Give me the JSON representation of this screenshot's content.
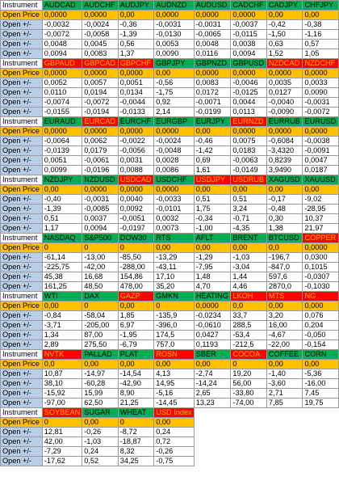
{
  "sheet": {
    "blocks": [
      {
        "header_label": "Instrument",
        "headers": [
          {
            "name": "AUDCAD",
            "color": "green"
          },
          {
            "name": "AUDCHF",
            "color": "green"
          },
          {
            "name": "AUDJPY",
            "color": "green"
          },
          {
            "name": "AUDNZD",
            "color": "green"
          },
          {
            "name": "AUDUSD",
            "color": "green"
          },
          {
            "name": "CADCHF",
            "color": "green"
          },
          {
            "name": "CADJPY",
            "color": "green"
          },
          {
            "name": "CHFJPY",
            "color": "green"
          }
        ],
        "open_price_label": "Open Price",
        "open_prices": [
          "0,0000",
          "0,0000",
          "0,00",
          "0,0000",
          "0,0000",
          "0,0000",
          "0,00",
          "0,00"
        ],
        "rows_label": "Open +/-",
        "rows": [
          [
            "-0,0032",
            "-0,0024",
            "-0,36",
            "-0,0031",
            "-0,0031",
            "-0,0037",
            "-0,42",
            "-0,38"
          ],
          [
            "-0,0072",
            "-0,0058",
            "-1,39",
            "-0,0130",
            "-0,0065",
            "-0,0115",
            "-1,50",
            "-1,16"
          ],
          [
            "0,0048",
            "0,0045",
            "0,56",
            "0,0053",
            "0,0048",
            "0,0038",
            "0,63",
            "0,57"
          ],
          [
            "0,0094",
            "0,0083",
            "1,37",
            "0,0090",
            "0,0116",
            "0,0094",
            "1,52",
            "1,05"
          ]
        ]
      },
      {
        "header_label": "Instrument",
        "headers": [
          {
            "name": "GBPAUD",
            "color": "red"
          },
          {
            "name": "GBPCAD",
            "color": "red"
          },
          {
            "name": "GBPCHF",
            "color": "red"
          },
          {
            "name": "GBPJPY",
            "color": "green"
          },
          {
            "name": "GBPNZD",
            "color": "green"
          },
          {
            "name": "GBPUSD",
            "color": "green"
          },
          {
            "name": "NZDCAD",
            "color": "red"
          },
          {
            "name": "NZDCHF",
            "color": "red"
          }
        ],
        "open_price_label": "Open Price",
        "open_prices": [
          "0,0000",
          "0,0000",
          "0,0000",
          "0,00",
          "0,0000",
          "0,0000",
          "0,0000",
          "0,0000"
        ],
        "rows_label": "Open +/-",
        "rows": [
          [
            "0,0052",
            "0,0057",
            "0,0051",
            "-0,56",
            "0,0083",
            "-0,0046",
            "0,0035",
            "0,0033"
          ],
          [
            "0,0110",
            "0,0194",
            "0,0134",
            "-1,75",
            "0,0172",
            "-0,0125",
            "0,0127",
            "0,0090"
          ],
          [
            "-0,0074",
            "-0,0072",
            "-0,0044",
            "0,92",
            "-0,0071",
            "0,0044",
            "-0,0040",
            "-0,0031"
          ],
          [
            "-0,0155",
            "-0,0194",
            "-0,0133",
            "2,14",
            "-0,0199",
            "0,0113",
            "-0,0090",
            "-0,0072"
          ]
        ]
      },
      {
        "header_label": "Instrument",
        "headers": [
          {
            "name": "EURAUD",
            "color": "green"
          },
          {
            "name": "EURCAD",
            "color": "red"
          },
          {
            "name": "EURCHF",
            "color": "green"
          },
          {
            "name": "EURGBP",
            "color": "green"
          },
          {
            "name": "EURJPY",
            "color": "green"
          },
          {
            "name": "EURNZD",
            "color": "red"
          },
          {
            "name": "EURRUB",
            "color": "green"
          },
          {
            "name": "EURUSD",
            "color": "green"
          }
        ],
        "open_price_label": "Open Price",
        "open_prices": [
          "0,0000",
          "0,0000",
          "0,0000",
          "0,0000",
          "0,00",
          "0,0000",
          "0,0000",
          "0,0000"
        ],
        "rows_label": "Open +/-",
        "rows": [
          [
            "-0,0064",
            "0,0062",
            "-0,0022",
            "-0,0024",
            "-0,46",
            "0,0075",
            "-0,6084",
            "-0,0038"
          ],
          [
            "-0,0139",
            "0,0179",
            "-0,0056",
            "-0,0048",
            "-1,42",
            "0,0183",
            "-3,4320",
            "-0,0091"
          ],
          [
            "0,0051",
            "-0,0061",
            "0,0031",
            "0,0028",
            "0,69",
            "-0,0063",
            "0,8239",
            "0,0047"
          ],
          [
            "0,0099",
            "-0,0196",
            "0,0088",
            "0,0086",
            "1,61",
            "-0,0149",
            "3,9490",
            "0,0187"
          ]
        ]
      },
      {
        "header_label": "Instrument",
        "headers": [
          {
            "name": "NZDJPY",
            "color": "green"
          },
          {
            "name": "NZDUSD",
            "color": "green"
          },
          {
            "name": "USDCAD",
            "color": "red"
          },
          {
            "name": "USDCHF",
            "color": "green"
          },
          {
            "name": "USDJPY",
            "color": "red"
          },
          {
            "name": "USDRUB",
            "color": "red"
          },
          {
            "name": "XAGUSD",
            "color": "green"
          },
          {
            "name": "XAUUSD",
            "color": "green"
          }
        ],
        "open_price_label": "Open Price",
        "open_prices": [
          "0,00",
          "0,0000",
          "0,0000",
          "0,0000",
          "0,00",
          "0,00",
          "0,00",
          "0,00"
        ],
        "rows_label": "Open +/-",
        "rows": [
          [
            "-0,40",
            "-0,0031",
            "0,0040",
            "-0,0033",
            "0,51",
            "0,51",
            "-0,17",
            "-9,02"
          ],
          [
            "-1,39",
            "-0,0085",
            "0,0092",
            "-0,0101",
            "1,75",
            "3,24",
            "-0,48",
            "-28,95"
          ],
          [
            "0,51",
            "0,0037",
            "-0,0051",
            "0,0032",
            "-0,34",
            "-0,71",
            "0,30",
            "10,37"
          ],
          [
            "1,17",
            "0,0094",
            "-0,0197",
            "0,0073",
            "-1,00",
            "-4,35",
            "1,38",
            "21,97"
          ]
        ]
      },
      {
        "header_label": "Instrument",
        "headers": [
          {
            "name": "NASDAQ",
            "color": "green"
          },
          {
            "name": "S&P500",
            "color": "green"
          },
          {
            "name": "DOW30",
            "color": "green"
          },
          {
            "name": "RTS",
            "color": "green"
          },
          {
            "name": "AFLT",
            "color": "green"
          },
          {
            "name": "BRENT",
            "color": "green"
          },
          {
            "name": "BTCUSD",
            "color": "green"
          },
          {
            "name": "COPPER",
            "color": "red"
          }
        ],
        "open_price_label": "Open Price",
        "open_prices": [
          "0",
          "0",
          "0",
          "0,00",
          "0,00",
          "0,00",
          "0,0",
          "0,0000"
        ],
        "rows_label": "Open +/-",
        "rows": [
          [
            "-61,14",
            "-13,00",
            "-85,50",
            "-13,29",
            "-1,29",
            "-1,03",
            "-196,7",
            "0,0300"
          ],
          [
            "-225,75",
            "-42,00",
            "-288,00",
            "-43,11",
            "-7,95",
            "-3,04",
            "-847,0",
            "0,1015"
          ],
          [
            "45,38",
            "16,68",
            "154,86",
            "17,10",
            "1,48",
            "1,44",
            "597,6",
            "-0,0307"
          ],
          [
            "161,25",
            "48,50",
            "478,00",
            "35,20",
            "4,70",
            "4,46",
            "2870,0",
            "-0,1030"
          ]
        ]
      },
      {
        "header_label": "Instrument",
        "headers": [
          {
            "name": "WTI",
            "color": "green"
          },
          {
            "name": "DAX",
            "color": "green"
          },
          {
            "name": "GAZP",
            "color": "red"
          },
          {
            "name": "GMKN",
            "color": "green"
          },
          {
            "name": "HEATING",
            "color": "green"
          },
          {
            "name": "LKOH",
            "color": "red"
          },
          {
            "name": "MTS",
            "color": "red"
          },
          {
            "name": "NG",
            "color": "red"
          }
        ],
        "open_price_label": "Open Price",
        "open_prices": [
          "0,00",
          "0",
          "0,00",
          "0",
          "0,0000",
          "0,0",
          "0,00",
          "0,000"
        ],
        "rows_label": "Open +/-",
        "rows": [
          [
            "-0,84",
            "-58,04",
            "1,85",
            "-135,9",
            "-0,0234",
            "33,7",
            "3,20",
            "0,076"
          ],
          [
            "-3,71",
            "-205,00",
            "6,97",
            "-396,0",
            "-0,0610",
            "288,5",
            "16,00",
            "0,204"
          ],
          [
            "1,34",
            "87,00",
            "-1,95",
            "174,5",
            "0,0427",
            "-53,4",
            "-4,67",
            "-0,050"
          ],
          [
            "2,89",
            "275,50",
            "-6,79",
            "757,0",
            "0,1193",
            "-212,5",
            "-22,00",
            "-0,154"
          ]
        ]
      },
      {
        "header_label": "Instrument",
        "headers": [
          {
            "name": "NVTK",
            "color": "red"
          },
          {
            "name": "PALLAD",
            "color": "green"
          },
          {
            "name": "PLAT",
            "color": "green"
          },
          {
            "name": "ROSN",
            "color": "red"
          },
          {
            "name": "SBER",
            "color": "green"
          },
          {
            "name": "COCOA",
            "color": "red"
          },
          {
            "name": "COFFEE",
            "color": "green"
          },
          {
            "name": "CORN",
            "color": "green"
          }
        ],
        "open_price_label": "Open Price",
        "open_prices": [
          "0,0",
          "0,00",
          "0,00",
          "0,00",
          "0,00",
          "0",
          "0,00",
          "0,00"
        ],
        "rows_label": "Open +/-",
        "rows": [
          [
            "10,87",
            "-14,97",
            "-14,54",
            "4,13",
            "-2,74",
            "19,20",
            "-1,40",
            "-5,36"
          ],
          [
            "38,10",
            "-60,28",
            "-42,90",
            "14,95",
            "-14,24",
            "56,00",
            "-3,60",
            "-16,00"
          ],
          [
            "-15,92",
            "15,99",
            "8,90",
            "-5,16",
            "2,65",
            "-33,80",
            "2,71",
            "7,45"
          ],
          [
            "-97,00",
            "62,50",
            "21,25",
            "-14,45",
            "13,23",
            "-74,00",
            "7,85",
            "19,75"
          ]
        ]
      },
      {
        "header_label": "Instrument",
        "headers": [
          {
            "name": "SOYBEAN",
            "color": "red"
          },
          {
            "name": "SUGAR",
            "color": "green"
          },
          {
            "name": "WHEAT",
            "color": "green"
          },
          {
            "name": "USD Index",
            "color": "red"
          }
        ],
        "open_price_label": "Open Price",
        "open_prices": [
          "0",
          "0,00",
          "0",
          "0,00"
        ],
        "rows_label": "Open +/-",
        "rows": [
          [
            "12,81",
            "-0,26",
            "-8,72",
            "0,24"
          ],
          [
            "42,00",
            "-1,03",
            "-18,87",
            "0,72"
          ],
          [
            "-7,29",
            "0,24",
            "8,32",
            "-0,26"
          ],
          [
            "-17,62",
            "0,52",
            "34,25",
            "-0,75"
          ]
        ]
      }
    ]
  }
}
